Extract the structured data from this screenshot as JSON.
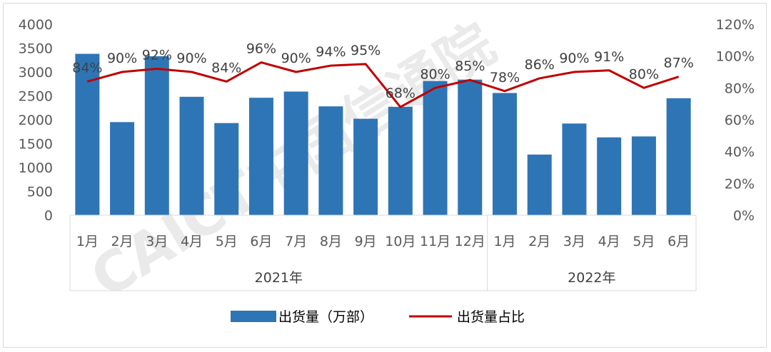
{
  "chart_data": {
    "type": "bar",
    "categories": [
      "1月",
      "2月",
      "3月",
      "4月",
      "5月",
      "6月",
      "7月",
      "8月",
      "9月",
      "10月",
      "11月",
      "12月",
      "1月",
      "2月",
      "3月",
      "4月",
      "5月",
      "6月"
    ],
    "category_groups": [
      {
        "label": "2021年",
        "count": 12
      },
      {
        "label": "2022年",
        "count": 6
      }
    ],
    "series": [
      {
        "name": "出货量（万部）",
        "type": "bar",
        "axis": "left",
        "color": "#2e75b6",
        "values": [
          3380,
          1950,
          3330,
          2480,
          1930,
          2460,
          2590,
          2280,
          2020,
          2270,
          2810,
          2840,
          2560,
          1270,
          1920,
          1630,
          1650,
          2450
        ]
      },
      {
        "name": "出货量占比",
        "type": "line",
        "axis": "right",
        "color": "#c00000",
        "values": [
          84,
          90,
          92,
          90,
          84,
          96,
          90,
          94,
          95,
          68,
          80,
          85,
          78,
          86,
          90,
          91,
          80,
          87
        ],
        "labels": [
          "84%",
          "90%",
          "92%",
          "90%",
          "84%",
          "96%",
          "90%",
          "94%",
          "95%",
          "68%",
          "80%",
          "85%",
          "78%",
          "86%",
          "90%",
          "91%",
          "80%",
          "87%"
        ]
      }
    ],
    "y_left": {
      "min": 0,
      "max": 4000,
      "step": 500,
      "tick_labels": [
        "0",
        "500",
        "1000",
        "1500",
        "2000",
        "2500",
        "3000",
        "3500",
        "4000"
      ]
    },
    "y_right": {
      "min": 0,
      "max": 120,
      "step": 20,
      "tick_labels": [
        "0%",
        "20%",
        "40%",
        "60%",
        "80%",
        "100%",
        "120%"
      ]
    },
    "grid": false,
    "legend_position": "bottom"
  },
  "watermark": "CAICT中国信通院"
}
